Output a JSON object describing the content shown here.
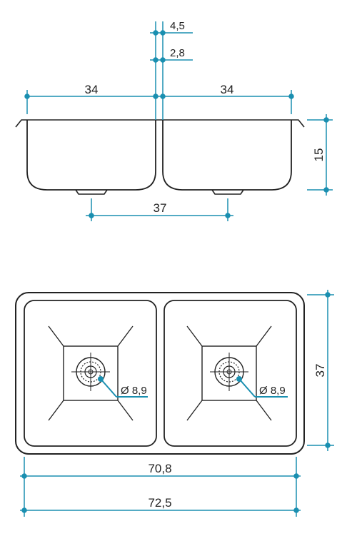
{
  "colors": {
    "outline": "#222222",
    "dimension": "#1a8fb0",
    "background": "#ffffff"
  },
  "side_view": {
    "dim_top_gap": "4,5",
    "dim_second_gap": "2,8",
    "dim_left_width": "34",
    "dim_right_width": "34",
    "dim_depth": "15",
    "dim_drain_spacing": "37"
  },
  "top_view": {
    "drain_left_label": "Ø 8,9",
    "drain_right_label": "Ø 8,9",
    "dim_height": "37",
    "dim_inner_width": "70,8",
    "dim_outer_width": "72,5"
  }
}
